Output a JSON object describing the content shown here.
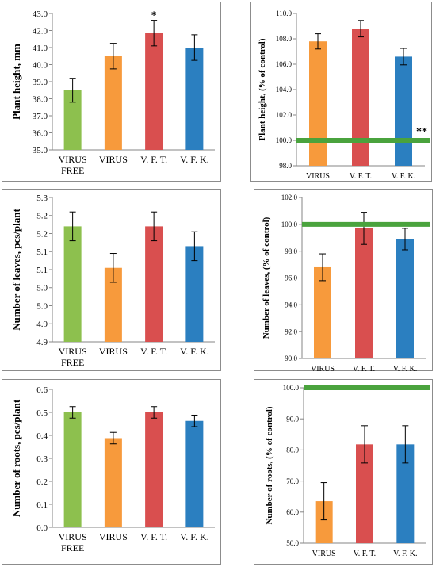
{
  "colors": {
    "virus_free": "#8dc04e",
    "virus": "#f79a3c",
    "vft": "#d94f4f",
    "vfk": "#2b7fc0",
    "control_line": "#4aa33d",
    "axis": "#868686"
  },
  "chart_data": [
    {
      "type": "bar",
      "ylabel": "Plant height, mm",
      "categories": [
        "VIRUS\nFREE",
        "VIRUS",
        "V. F. T.",
        "V. F. K."
      ],
      "values": [
        38.5,
        40.5,
        41.85,
        41.0
      ],
      "errors": [
        0.7,
        0.75,
        0.75,
        0.75
      ],
      "annotations": [
        "",
        "",
        "*",
        ""
      ],
      "ylim": [
        35.0,
        43.0
      ],
      "yticks": [
        "35.0",
        "36.0",
        "37.0",
        "38.0",
        "39.0",
        "40.0",
        "41.0",
        "42.0",
        "43.0"
      ],
      "grid": false
    },
    {
      "type": "bar",
      "ylabel": "Plant height, (% of control)",
      "categories": [
        "VIRUS",
        "V. F. T.",
        "V. F. K."
      ],
      "values": [
        107.8,
        108.8,
        106.6
      ],
      "errors": [
        0.6,
        0.65,
        0.65
      ],
      "ylim": [
        98.0,
        110.0
      ],
      "yticks": [
        "98.0",
        "100.0",
        "102.0",
        "104.0",
        "106.0",
        "108.0",
        "110.0"
      ],
      "control_line": 100.0,
      "annotation": "**",
      "grid": false
    },
    {
      "type": "bar",
      "ylabel": "Number of leaves, pcs/plant",
      "categories": [
        "VIRUS\nFREE",
        "VIRUS",
        "V. F. T.",
        "V. F. K."
      ],
      "values": [
        5.22,
        5.105,
        5.22,
        5.165
      ],
      "errors": [
        0.04,
        0.04,
        0.04,
        0.04
      ],
      "ylim": [
        4.9,
        5.3
      ],
      "yticks": [
        "4.9",
        "4.9",
        "5.0",
        "5.0",
        "5.1",
        "5.1",
        "5.2",
        "5.2",
        "5.3"
      ],
      "grid": false
    },
    {
      "type": "bar",
      "ylabel": "Number of leaves, (% of control)",
      "categories": [
        "VIRUS",
        "V. F. T.",
        "V. F. K."
      ],
      "values": [
        96.8,
        99.7,
        98.9
      ],
      "errors": [
        1.0,
        1.2,
        0.8
      ],
      "ylim": [
        90.0,
        102.0
      ],
      "yticks": [
        "90.0",
        "92.0",
        "94.0",
        "96.0",
        "98.0",
        "100.0",
        "102.0"
      ],
      "control_line": 100.0,
      "grid": false
    },
    {
      "type": "bar",
      "ylabel": "Number of roots, pcs/plant",
      "categories": [
        "VIRUS\nFREE",
        "VIRUS",
        "V. F. T.",
        "V. F. K."
      ],
      "values": [
        0.5,
        0.388,
        0.5,
        0.463
      ],
      "errors": [
        0.025,
        0.025,
        0.025,
        0.025
      ],
      "ylim": [
        0.0,
        0.6
      ],
      "yticks": [
        "0.0",
        "0.1",
        "0.2",
        "0.3",
        "0.4",
        "0.5",
        "0.6"
      ],
      "grid": false
    },
    {
      "type": "bar",
      "ylabel": "Number of roots, (% of control)",
      "categories": [
        "VIRUS",
        "V. F. T.",
        "V. F. K."
      ],
      "values": [
        63.5,
        81.8,
        81.8
      ],
      "errors": [
        6.0,
        6.0,
        6.0
      ],
      "ylim": [
        50.0,
        100.0
      ],
      "yticks": [
        "50.0",
        "60.0",
        "70.0",
        "80.0",
        "90.0",
        "100.0"
      ],
      "control_line": 100.0,
      "grid": false
    }
  ]
}
